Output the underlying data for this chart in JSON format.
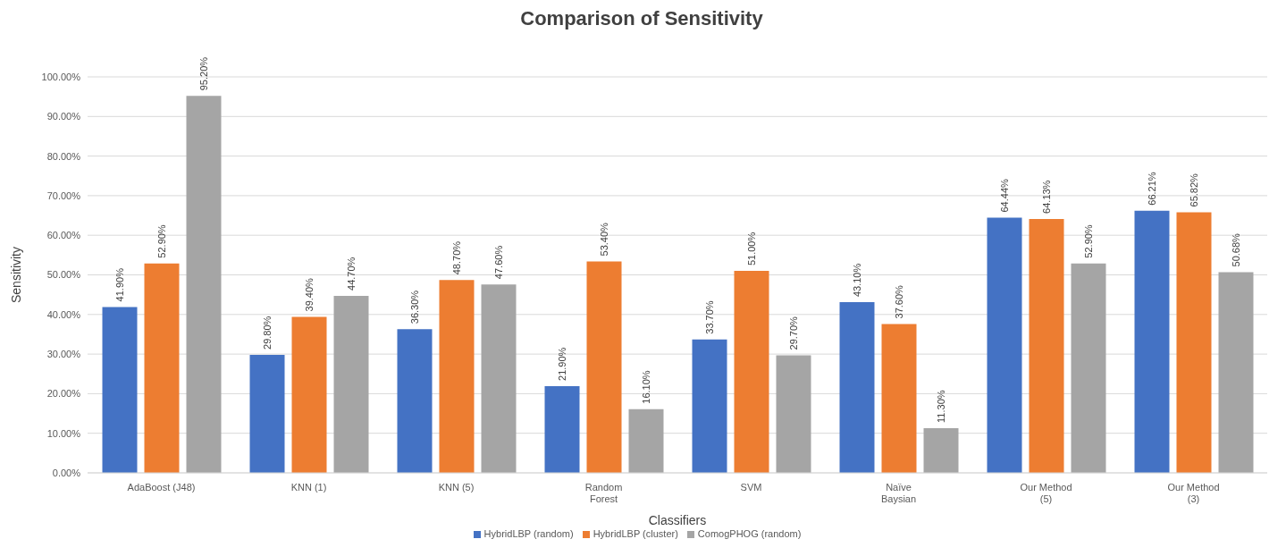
{
  "chart_data": {
    "type": "bar",
    "title": "Comparison of Sensitivity",
    "xlabel": "Classifiers",
    "ylabel": "Sensitivity",
    "categories": [
      "AdaBoost (J48)",
      "KNN (1)",
      "KNN (5)",
      "Random\nForest",
      "SVM",
      "Naïve\nBaysian",
      "Our Method\n(5)",
      "Our Method\n(3)"
    ],
    "series": [
      {
        "name": "HybridLBP (random)",
        "color": "#4472c4",
        "values": [
          41.9,
          29.8,
          36.3,
          21.9,
          33.7,
          43.1,
          64.44,
          66.21
        ],
        "value_labels": [
          "41.90%",
          "29.80%",
          "36.30%",
          "21.90%",
          "33.70%",
          "43.10%",
          "64.44%",
          "66.21%"
        ]
      },
      {
        "name": "HybridLBP (cluster)",
        "color": "#ed7d31",
        "values": [
          52.9,
          39.4,
          48.7,
          53.4,
          51.0,
          37.6,
          64.13,
          65.82
        ],
        "value_labels": [
          "52.90%",
          "39.40%",
          "48.70%",
          "53.40%",
          "51.00%",
          "37.60%",
          "64.13%",
          "65.82%"
        ]
      },
      {
        "name": "ComogPHOG (random)",
        "color": "#a5a5a5",
        "values": [
          95.2,
          44.7,
          47.6,
          16.1,
          29.7,
          11.3,
          52.9,
          50.68
        ],
        "value_labels": [
          "95.20%",
          "44.70%",
          "47.60%",
          "16.10%",
          "29.70%",
          "11.30%",
          "52.90%",
          "50.68%"
        ]
      }
    ],
    "ylim": [
      0,
      100
    ],
    "yticks": [
      {
        "value": 0,
        "label": "0.00%"
      },
      {
        "value": 10,
        "label": "10.00%"
      },
      {
        "value": 20,
        "label": "20.00%"
      },
      {
        "value": 30,
        "label": "30.00%"
      },
      {
        "value": 40,
        "label": "40.00%"
      },
      {
        "value": 50,
        "label": "50.00%"
      },
      {
        "value": 60,
        "label": "60.00%"
      },
      {
        "value": 70,
        "label": "70.00%"
      },
      {
        "value": 80,
        "label": "80.00%"
      },
      {
        "value": 90,
        "label": "90.00%"
      },
      {
        "value": 100,
        "label": "100.00%"
      }
    ],
    "grid": "y",
    "legend": "bottom"
  }
}
